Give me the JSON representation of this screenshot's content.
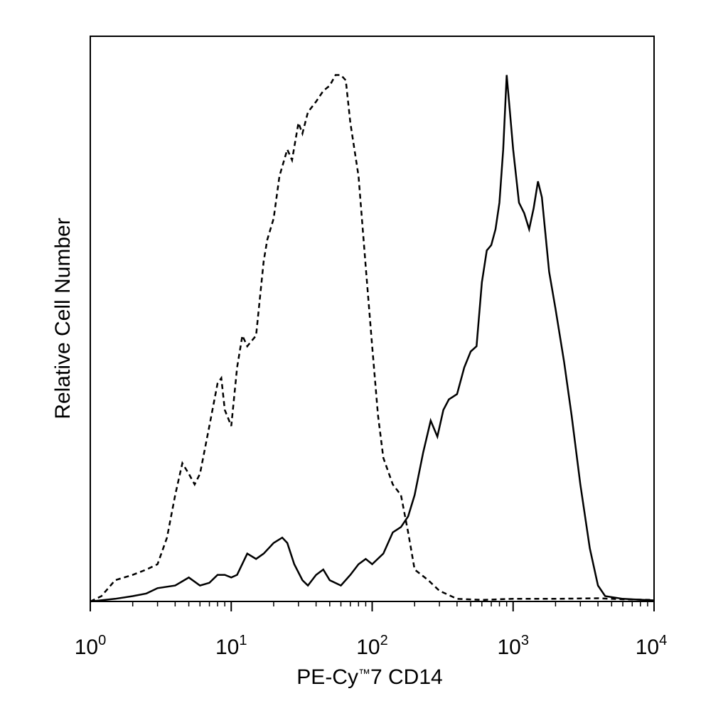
{
  "chart_data": {
    "type": "line",
    "title": "",
    "xlabel": "PE-Cy™7 CD14",
    "xlabel_parts": {
      "main": "PE-Cy",
      "tm": "™",
      "rest": "7 CD14"
    },
    "ylabel": "Relative Cell Number",
    "xscale": "log",
    "xlim": [
      1,
      10000
    ],
    "ylim": [
      0,
      100
    ],
    "grid": false,
    "legend": "none",
    "x_ticks": [
      {
        "base": "10",
        "exp": "0",
        "value": 1
      },
      {
        "base": "10",
        "exp": "1",
        "value": 10
      },
      {
        "base": "10",
        "exp": "2",
        "value": 100
      },
      {
        "base": "10",
        "exp": "3",
        "value": 1000
      },
      {
        "base": "10",
        "exp": "4",
        "value": 10000
      }
    ],
    "series": [
      {
        "style": "dashed",
        "color": "#000000",
        "points": [
          [
            1.0,
            0
          ],
          [
            1.2,
            1
          ],
          [
            1.5,
            4
          ],
          [
            2.0,
            5
          ],
          [
            2.5,
            6
          ],
          [
            3.0,
            7
          ],
          [
            3.5,
            12
          ],
          [
            4.0,
            20
          ],
          [
            4.5,
            26
          ],
          [
            5.0,
            24
          ],
          [
            5.5,
            22
          ],
          [
            6.0,
            24
          ],
          [
            7.0,
            33
          ],
          [
            8.0,
            41
          ],
          [
            8.5,
            42
          ],
          [
            9.0,
            36
          ],
          [
            10.0,
            33
          ],
          [
            11.0,
            44
          ],
          [
            12.0,
            50
          ],
          [
            13.0,
            48
          ],
          [
            15.0,
            50
          ],
          [
            17.0,
            64
          ],
          [
            18.0,
            68
          ],
          [
            20.0,
            72
          ],
          [
            22.0,
            80
          ],
          [
            25.0,
            85
          ],
          [
            27.0,
            83
          ],
          [
            30.0,
            90
          ],
          [
            32.0,
            88
          ],
          [
            35.0,
            92
          ],
          [
            40.0,
            94
          ],
          [
            45.0,
            96
          ],
          [
            50.0,
            97
          ],
          [
            55.0,
            99
          ],
          [
            60.0,
            99
          ],
          [
            65.0,
            98
          ],
          [
            70.0,
            90
          ],
          [
            80.0,
            80
          ],
          [
            90.0,
            63
          ],
          [
            100.0,
            48
          ],
          [
            110.0,
            35
          ],
          [
            120.0,
            27
          ],
          [
            140.0,
            22
          ],
          [
            160.0,
            20
          ],
          [
            180.0,
            13
          ],
          [
            200.0,
            6
          ],
          [
            250.0,
            4
          ],
          [
            300.0,
            2
          ],
          [
            400.0,
            0.5
          ],
          [
            600.0,
            0.3
          ],
          [
            1000.0,
            0.5
          ],
          [
            2000.0,
            0.5
          ],
          [
            4000.0,
            0.6
          ],
          [
            6000.0,
            0.4
          ],
          [
            10000.0,
            0.3
          ]
        ]
      },
      {
        "style": "solid",
        "color": "#000000",
        "points": [
          [
            1.0,
            0
          ],
          [
            1.5,
            0.5
          ],
          [
            2.0,
            1
          ],
          [
            2.5,
            1.5
          ],
          [
            3.0,
            2.5
          ],
          [
            4.0,
            3
          ],
          [
            5.0,
            4.5
          ],
          [
            6.0,
            3
          ],
          [
            7.0,
            3.5
          ],
          [
            8.0,
            5
          ],
          [
            9.0,
            5
          ],
          [
            10.0,
            4.5
          ],
          [
            11.0,
            5
          ],
          [
            13.0,
            9
          ],
          [
            15.0,
            8
          ],
          [
            17.0,
            9
          ],
          [
            20.0,
            11
          ],
          [
            23.0,
            12
          ],
          [
            25.0,
            11
          ],
          [
            28.0,
            7
          ],
          [
            32.0,
            4
          ],
          [
            35.0,
            3
          ],
          [
            40.0,
            5
          ],
          [
            45.0,
            6
          ],
          [
            50.0,
            4
          ],
          [
            60.0,
            3
          ],
          [
            70.0,
            5
          ],
          [
            80.0,
            7
          ],
          [
            90.0,
            8
          ],
          [
            100.0,
            7
          ],
          [
            120.0,
            9
          ],
          [
            140.0,
            13
          ],
          [
            160.0,
            14
          ],
          [
            180.0,
            16
          ],
          [
            200.0,
            20
          ],
          [
            230.0,
            28
          ],
          [
            260.0,
            34
          ],
          [
            290.0,
            31
          ],
          [
            320.0,
            36
          ],
          [
            350.0,
            38
          ],
          [
            400.0,
            39
          ],
          [
            450.0,
            44
          ],
          [
            500.0,
            47
          ],
          [
            550.0,
            48
          ],
          [
            600.0,
            60
          ],
          [
            650.0,
            66
          ],
          [
            700.0,
            67
          ],
          [
            750.0,
            70
          ],
          [
            800.0,
            75
          ],
          [
            850.0,
            85
          ],
          [
            900.0,
            99
          ],
          [
            950.0,
            92
          ],
          [
            1000.0,
            85
          ],
          [
            1100.0,
            75
          ],
          [
            1200.0,
            73
          ],
          [
            1300.0,
            70
          ],
          [
            1400.0,
            74
          ],
          [
            1500.0,
            79
          ],
          [
            1600.0,
            76
          ],
          [
            1800.0,
            62
          ],
          [
            2000.0,
            55
          ],
          [
            2300.0,
            45
          ],
          [
            2600.0,
            35
          ],
          [
            3000.0,
            22
          ],
          [
            3500.0,
            10
          ],
          [
            4000.0,
            3
          ],
          [
            4500.0,
            1
          ],
          [
            6000.0,
            0.5
          ],
          [
            10000.0,
            0.2
          ]
        ]
      }
    ]
  }
}
